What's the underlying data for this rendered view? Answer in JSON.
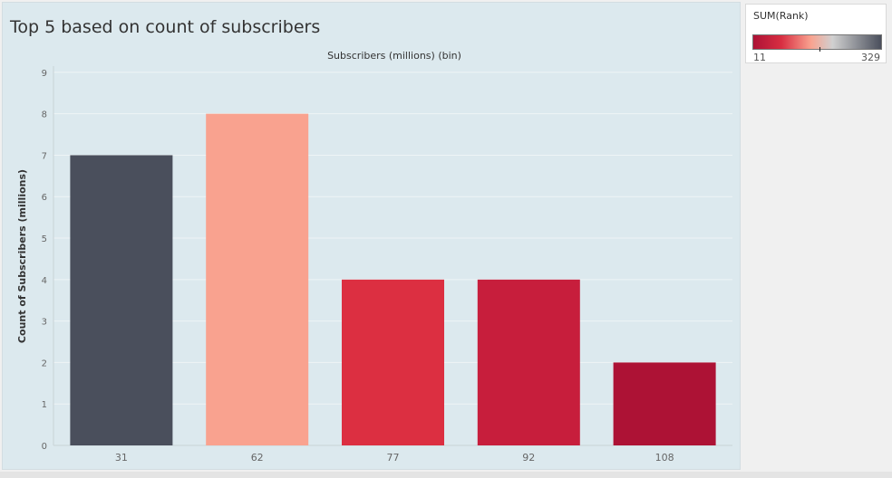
{
  "chart_data": {
    "type": "bar",
    "title": "Top 5 based on count of subscribers",
    "xlabel": "Subscribers (millions) (bin)",
    "ylabel": "Count of Subscribers (millions)",
    "categories": [
      "31",
      "62",
      "77",
      "92",
      "108"
    ],
    "values": [
      7,
      8,
      4,
      4,
      2
    ],
    "bar_colors": [
      "#4a4f5c",
      "#f9a28f",
      "#dc2f41",
      "#c71e3c",
      "#ad1235"
    ],
    "yticks": [
      "0",
      "1",
      "2",
      "3",
      "4",
      "5",
      "6",
      "7",
      "8",
      "9"
    ],
    "ylim": [
      0,
      9.15
    ],
    "grid": true,
    "legend": {
      "title": "SUM(Rank)",
      "min": "11",
      "max": "329",
      "placement": "top-right",
      "colors": [
        "#ad1235",
        "#d82e42",
        "#f9a28f",
        "#d0d0d0",
        "#4a4f5c"
      ],
      "marker_fraction": 0.52
    }
  }
}
